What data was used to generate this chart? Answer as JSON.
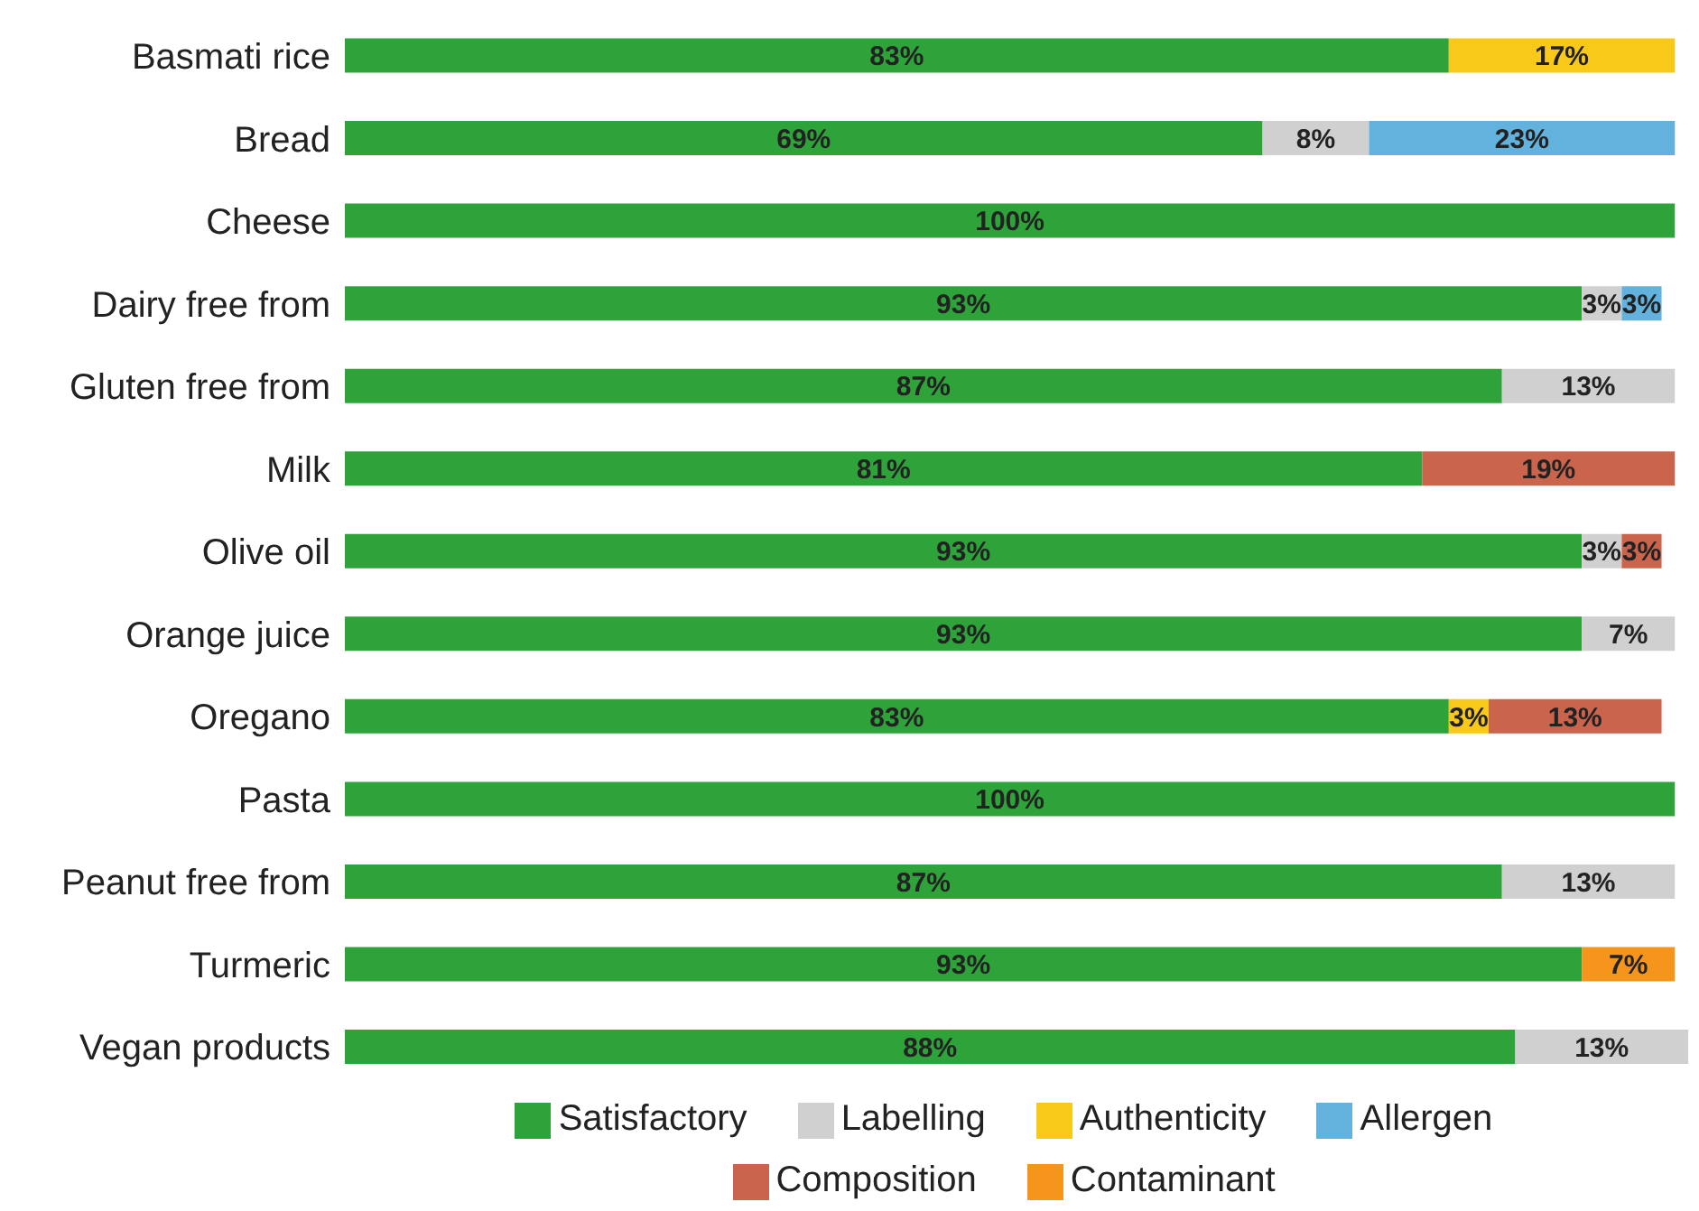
{
  "chart_data": {
    "type": "bar",
    "orientation": "horizontal",
    "stacked": true,
    "tick_labels": "y",
    "legend": "bottom",
    "categories": [
      "Basmati rice",
      "Bread",
      "Cheese",
      "Dairy free from",
      "Gluten free from",
      "Milk",
      "Olive oil",
      "Orange juice",
      "Oregano",
      "Pasta",
      "Peanut free from",
      "Turmeric",
      "Vegan products"
    ],
    "series": [
      {
        "name": "Satisfactory",
        "color": "#2ea33a",
        "values": [
          83,
          69,
          100,
          93,
          87,
          81,
          93,
          93,
          83,
          100,
          87,
          93,
          88
        ],
        "value_labels": [
          "83%",
          "69%",
          "100%",
          "93%",
          "87%",
          "81%",
          "93%",
          "93%",
          "83%",
          "100%",
          "87%",
          "93%",
          "88%"
        ]
      },
      {
        "name": "Labelling",
        "color": "#d0d0d0",
        "values": [
          null,
          8,
          null,
          3,
          13,
          null,
          3,
          7,
          null,
          null,
          13,
          null,
          13
        ],
        "value_labels": [
          null,
          "8%",
          null,
          "3%",
          "13%",
          null,
          "3%",
          "7%",
          null,
          null,
          "13%",
          null,
          "13%"
        ]
      },
      {
        "name": "Authenticity",
        "color": "#f8c918",
        "values": [
          17,
          null,
          null,
          null,
          null,
          null,
          null,
          null,
          3,
          null,
          null,
          null,
          null
        ],
        "value_labels": [
          "17%",
          null,
          null,
          null,
          null,
          null,
          null,
          null,
          "3%",
          null,
          null,
          null,
          null
        ]
      },
      {
        "name": "Allergen",
        "color": "#63b1dd",
        "values": [
          null,
          23,
          null,
          3,
          null,
          null,
          null,
          null,
          null,
          null,
          null,
          null,
          null
        ],
        "value_labels": [
          null,
          "23%",
          null,
          "3%",
          null,
          null,
          null,
          null,
          null,
          null,
          null,
          null,
          null
        ]
      },
      {
        "name": "Composition",
        "color": "#cb644c",
        "values": [
          null,
          null,
          null,
          null,
          null,
          19,
          3,
          null,
          13,
          null,
          null,
          null,
          null
        ],
        "value_labels": [
          null,
          null,
          null,
          null,
          null,
          "19%",
          "3%",
          null,
          "13%",
          null,
          null,
          null,
          null
        ]
      },
      {
        "name": "Contaminant",
        "color": "#f5951c",
        "values": [
          null,
          null,
          null,
          null,
          null,
          null,
          null,
          null,
          null,
          null,
          null,
          7,
          null
        ],
        "value_labels": [
          null,
          null,
          null,
          null,
          null,
          null,
          null,
          null,
          null,
          null,
          null,
          "7%",
          null
        ]
      }
    ]
  }
}
